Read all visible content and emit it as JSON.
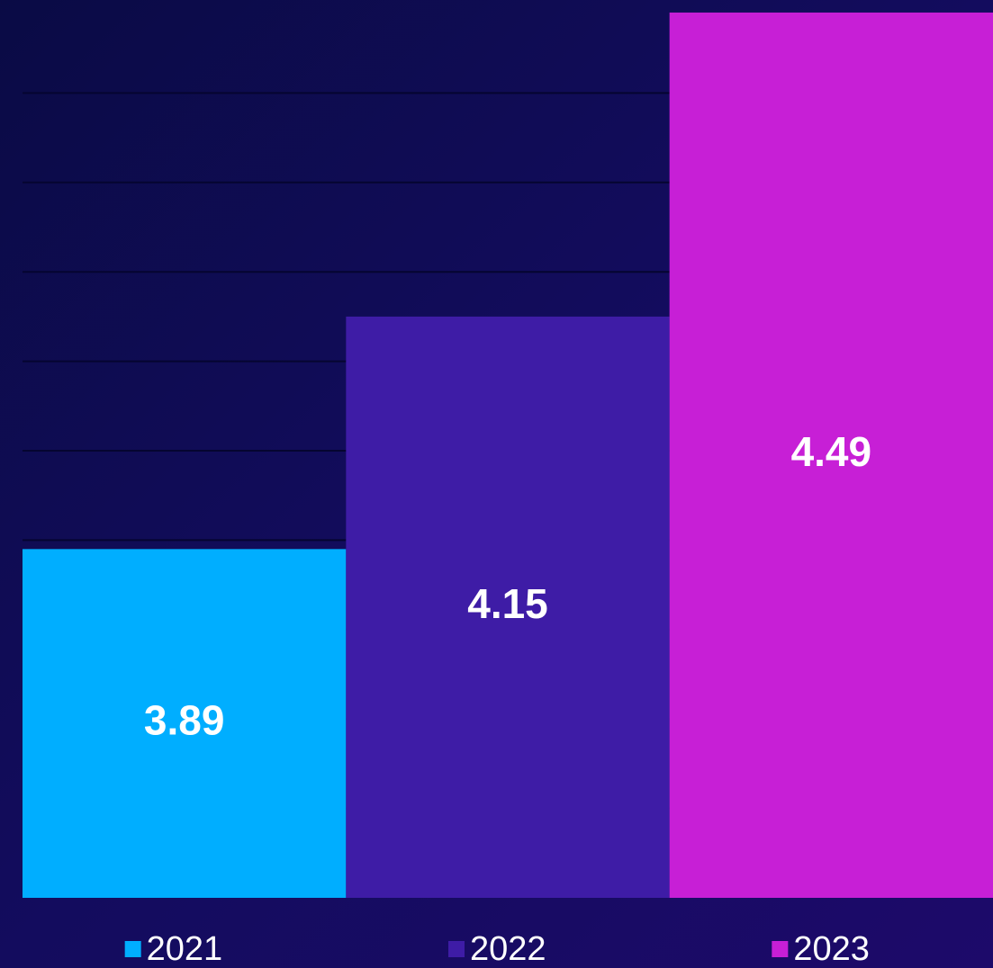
{
  "chart_data": {
    "type": "bar",
    "series": [
      {
        "name": "2021",
        "color": "#00aeff",
        "values": [
          3.89
        ]
      },
      {
        "name": "2022",
        "color": "#3e1ca6",
        "values": [
          4.15
        ]
      },
      {
        "name": "2023",
        "color": "#c71fd6",
        "values": [
          4.49
        ]
      }
    ],
    "ylim": [
      3.5,
      4.5
    ],
    "yticks": [
      3.6,
      3.7,
      3.8,
      3.9,
      4.0,
      4.1,
      4.2,
      4.3,
      4.4
    ],
    "grid": true
  }
}
